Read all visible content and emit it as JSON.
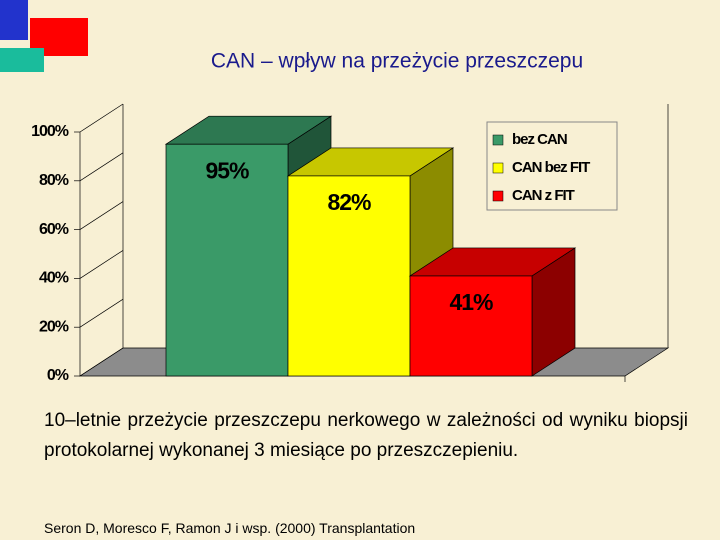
{
  "chart_data": {
    "type": "bar3d",
    "title": "CAN – wpływ na przeżycie przeszczepu",
    "categories": [
      null
    ],
    "series": [
      {
        "name": "bez CAN",
        "color": "#3a9a68",
        "values": [
          95
        ],
        "value_labels": [
          "95%"
        ]
      },
      {
        "name": "CAN bez FIT",
        "color": "#ffff00",
        "values": [
          82
        ],
        "value_labels": [
          "82%"
        ]
      },
      {
        "name": "CAN z FIT",
        "color": "#ff0000",
        "values": [
          41
        ],
        "value_labels": [
          "41%"
        ]
      }
    ],
    "ylim": [
      0,
      100
    ],
    "yticks": [
      {
        "value": 0,
        "label": "0%"
      },
      {
        "value": 20,
        "label": "20%"
      },
      {
        "value": 40,
        "label": "40%"
      },
      {
        "value": 60,
        "label": "60%"
      },
      {
        "value": 80,
        "label": "80%"
      },
      {
        "value": 100,
        "label": "100%"
      }
    ],
    "grid": true,
    "legend": "top-right"
  },
  "caption": "10–letnie przeżycie przeszczepu nerkowego w zależności od wyniku biopsji protokolarnej wykonanej 3 miesiące po przeszczepieniu.",
  "source": "Seron D, Moresco F, Ramon J i wsp. (2000) Transplantation"
}
